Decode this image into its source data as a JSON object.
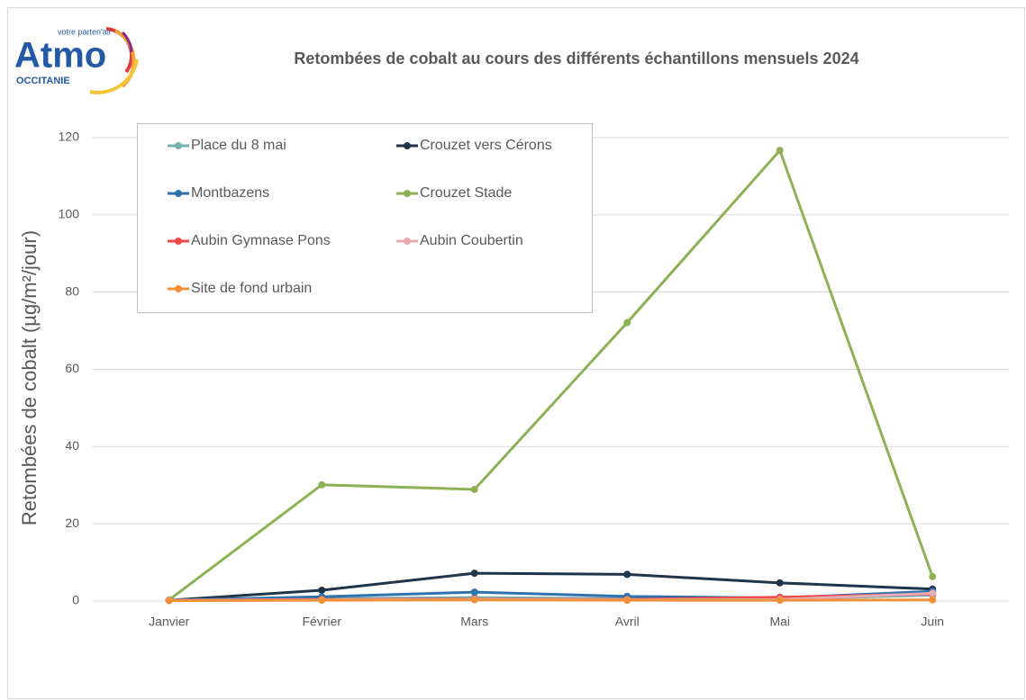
{
  "logo": {
    "name": "Atmo",
    "tagline": "votre parten'air",
    "region": "OCCITANIE"
  },
  "chart_data": {
    "type": "line",
    "title": "Retombées de cobalt au cours des différents échantillons mensuels 2024",
    "y_label": "Retombées de cobalt (µg/m²/jour)",
    "categories": [
      "Janvier",
      "Février",
      "Mars",
      "Avril",
      "Mai",
      "Juin"
    ],
    "ylim": [
      0,
      120
    ],
    "yticks": [
      0,
      20,
      40,
      60,
      80,
      100,
      120
    ],
    "grid": true,
    "legend": "top-left",
    "series": [
      {
        "name": "Place du 8 mai",
        "color": "#76b1b1",
        "values": [
          0.3,
          0.6,
          0.9,
          0.6,
          0.5,
          1.5
        ]
      },
      {
        "name": "Crouzet vers Cérons",
        "color": "#1f3549",
        "values": [
          0.2,
          2.8,
          7.2,
          6.9,
          4.7,
          3.1
        ]
      },
      {
        "name": "Montbazens",
        "color": "#2e72b0",
        "values": [
          0.2,
          1.1,
          2.3,
          1.2,
          0.8,
          2.5
        ]
      },
      {
        "name": "Crouzet Stade",
        "color": "#8db255",
        "values": [
          0.3,
          30.1,
          28.9,
          72.1,
          116.7,
          6.3
        ]
      },
      {
        "name": "Aubin Gymnase Pons",
        "color": "#f04848",
        "values": [
          0.2,
          0.4,
          0.5,
          0.4,
          1.0,
          1.8
        ]
      },
      {
        "name": "Aubin Coubertin",
        "color": "#e8aab2",
        "values": [
          0.2,
          0.3,
          0.4,
          0.3,
          0.4,
          2.0
        ]
      },
      {
        "name": "Site de fond urbain",
        "color": "#f0913a",
        "values": [
          0.1,
          0.2,
          0.3,
          0.2,
          0.2,
          0.3
        ]
      }
    ]
  }
}
